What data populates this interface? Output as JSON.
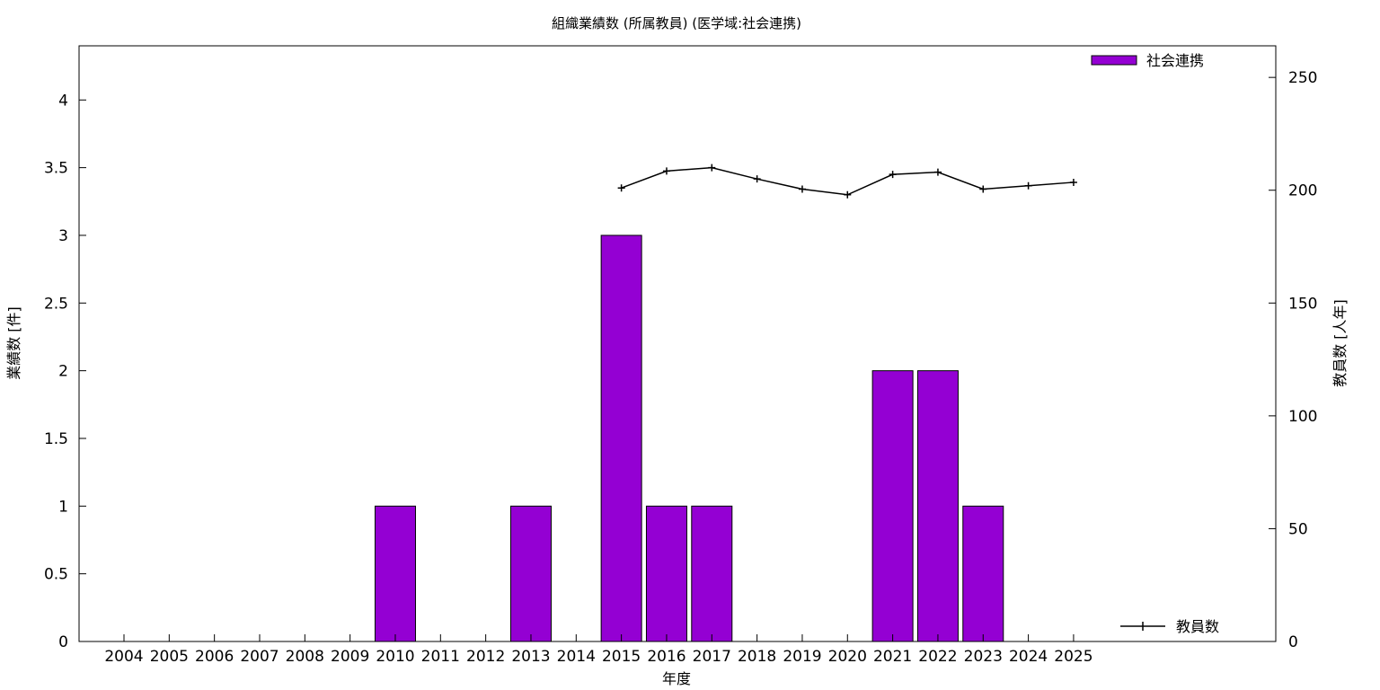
{
  "chart_data": {
    "type": "bar",
    "title": "組織業績数 (所属教員) (医学域:社会連携)",
    "xlabel": "年度",
    "ylabel": "業績数 [件]",
    "y2label": "教員数 [人年]",
    "categories": [
      "2004",
      "2005",
      "2006",
      "2007",
      "2008",
      "2009",
      "2010",
      "2011",
      "2012",
      "2013",
      "2014",
      "2015",
      "2016",
      "2017",
      "2018",
      "2019",
      "2020",
      "2021",
      "2022",
      "2023",
      "2024",
      "2025"
    ],
    "ylim": [
      0,
      4.4
    ],
    "yticks": [
      "0",
      "0.5",
      "1",
      "1.5",
      "2",
      "2.5",
      "3",
      "3.5",
      "4"
    ],
    "y2lim": [
      0,
      264
    ],
    "y2ticks": [
      "0",
      "50",
      "100",
      "150",
      "200",
      "250"
    ],
    "grid": false,
    "series": [
      {
        "name": "社会連携",
        "type": "bar",
        "axis": "left",
        "color": "#9400d3",
        "values": [
          0,
          0,
          0,
          0,
          0,
          0,
          1,
          0,
          0,
          1,
          0,
          3,
          1,
          1,
          0,
          0,
          0,
          2,
          2,
          1,
          0,
          0
        ]
      },
      {
        "name": "教員数",
        "type": "line",
        "axis": "right",
        "color": "#000000",
        "values": [
          null,
          null,
          null,
          null,
          null,
          null,
          null,
          null,
          null,
          null,
          null,
          201,
          208.5,
          210,
          205,
          200.5,
          198,
          207,
          208,
          200.5,
          202,
          203.5
        ]
      }
    ],
    "legend": [
      {
        "position": "top-right",
        "label": "社会連携"
      },
      {
        "position": "bottom-right",
        "label": "教員数"
      }
    ]
  }
}
